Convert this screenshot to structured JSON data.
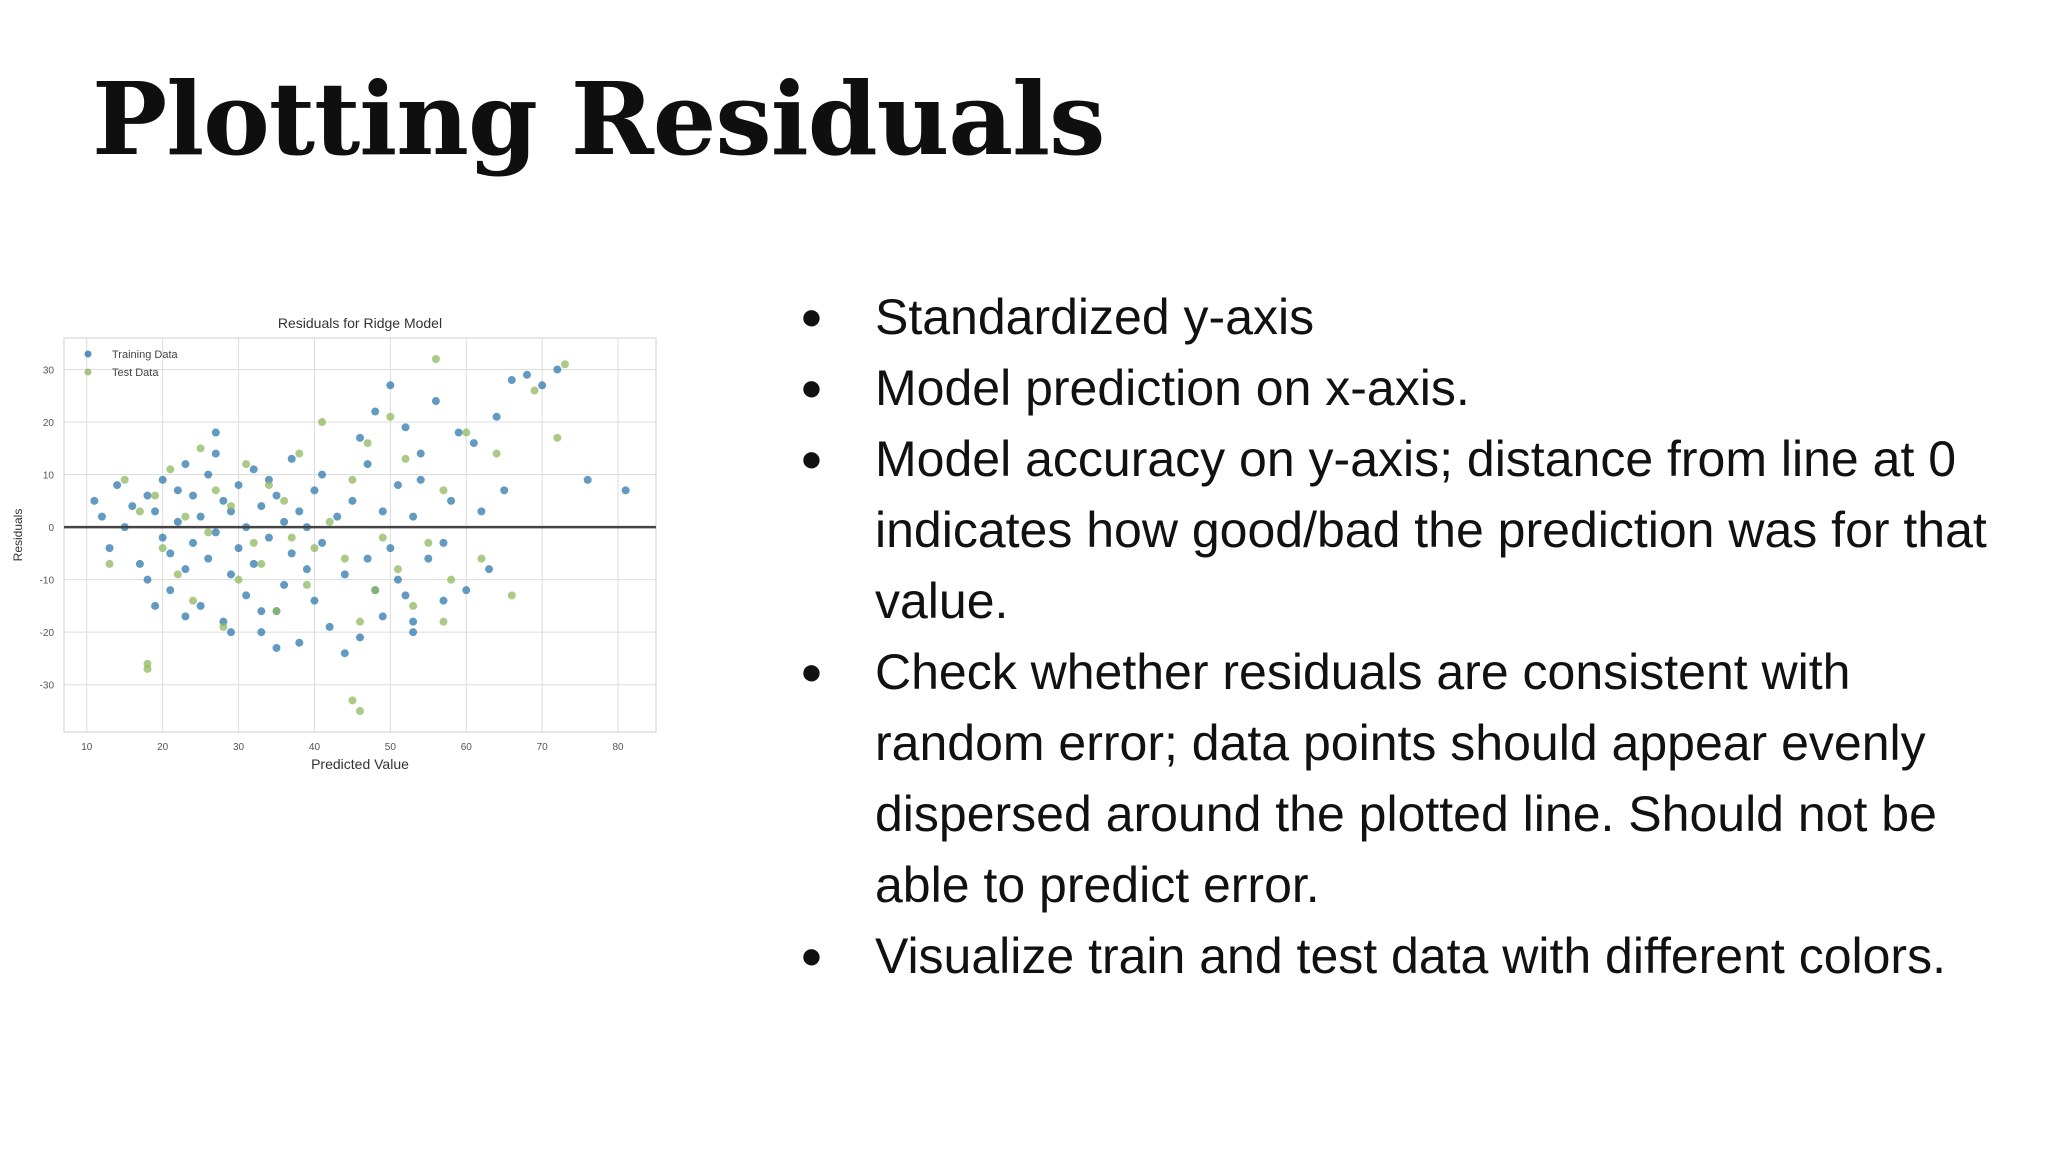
{
  "slide": {
    "title": "Plotting Residuals",
    "bullet_glyph": "●",
    "bullets": [
      "Standardized y-axis",
      "Model prediction on x-axis.",
      "Model accuracy on y-axis; distance from line at 0 indicates how good/bad the prediction was for that value.",
      "Check whether residuals are consistent with random error; data points should appear evenly dispersed around the plotted line. Should not be able to predict error.",
      "Visualize train and test data with different colors."
    ]
  },
  "colors": {
    "training": "#2f78ad",
    "test": "#8fb860",
    "zero_line": "#444444",
    "grid": "#dcdcdc"
  },
  "chart_data": {
    "type": "scatter",
    "title": "Residuals for Ridge Model",
    "xlabel": "Predicted Value",
    "ylabel": "Residuals",
    "xlim": [
      7,
      85
    ],
    "ylim": [
      -39,
      36
    ],
    "xticks": [
      10,
      20,
      30,
      40,
      50,
      60,
      70,
      80
    ],
    "yticks": [
      -30,
      -20,
      -10,
      0,
      10,
      20,
      30
    ],
    "grid": true,
    "legend_position": "top-left",
    "hline": 0,
    "series": [
      {
        "name": "Training Data",
        "color": "#2f78ad",
        "x": [
          11,
          12,
          13,
          14,
          15,
          16,
          17,
          18,
          18,
          19,
          20,
          20,
          21,
          21,
          22,
          22,
          23,
          23,
          24,
          24,
          25,
          25,
          26,
          26,
          27,
          27,
          28,
          28,
          29,
          29,
          30,
          30,
          31,
          31,
          32,
          32,
          33,
          33,
          34,
          34,
          35,
          35,
          36,
          36,
          37,
          37,
          38,
          38,
          39,
          39,
          40,
          40,
          41,
          41,
          42,
          43,
          44,
          45,
          46,
          46,
          47,
          47,
          48,
          48,
          49,
          49,
          50,
          50,
          51,
          51,
          52,
          52,
          53,
          53,
          54,
          54,
          55,
          56,
          57,
          58,
          59,
          60,
          61,
          62,
          63,
          64,
          65,
          66,
          68,
          70,
          72,
          76,
          81,
          19,
          23,
          27,
          29,
          33,
          35,
          44,
          53,
          57
        ],
        "y": [
          5,
          2,
          -4,
          8,
          0,
          4,
          -7,
          6,
          -10,
          3,
          9,
          -2,
          -12,
          -5,
          7,
          1,
          -8,
          12,
          -3,
          6,
          -15,
          2,
          10,
          -6,
          -1,
          14,
          -18,
          5,
          -9,
          3,
          -4,
          8,
          -13,
          0,
          11,
          -7,
          -20,
          4,
          -2,
          9,
          -16,
          6,
          -11,
          1,
          -5,
          13,
          -22,
          3,
          -8,
          0,
          -14,
          7,
          -3,
          10,
          -19,
          2,
          -9,
          5,
          -21,
          17,
          -6,
          12,
          -12,
          22,
          3,
          -17,
          27,
          -4,
          8,
          -10,
          19,
          -13,
          2,
          -20,
          9,
          14,
          -6,
          24,
          -3,
          5,
          18,
          -12,
          16,
          3,
          -8,
          21,
          7,
          28,
          29,
          27,
          30,
          9,
          7,
          -15,
          -17,
          18,
          -20,
          -16,
          -23,
          -24,
          -18,
          -14
        ]
      },
      {
        "name": "Test Data",
        "color": "#8fb860",
        "x": [
          13,
          15,
          17,
          18,
          19,
          20,
          21,
          22,
          23,
          24,
          25,
          26,
          27,
          28,
          29,
          30,
          31,
          32,
          33,
          34,
          35,
          36,
          37,
          38,
          39,
          40,
          41,
          42,
          44,
          45,
          46,
          47,
          48,
          49,
          50,
          51,
          52,
          53,
          55,
          56,
          57,
          58,
          60,
          62,
          64,
          66,
          69,
          72,
          73,
          18,
          45,
          46,
          57
        ],
        "y": [
          -7,
          9,
          3,
          -26,
          6,
          -4,
          11,
          -9,
          2,
          -14,
          15,
          -1,
          7,
          -19,
          4,
          -10,
          12,
          -3,
          -7,
          8,
          -16,
          5,
          -2,
          14,
          -11,
          -4,
          20,
          1,
          -6,
          9,
          -18,
          16,
          -12,
          -2,
          21,
          -8,
          13,
          -15,
          -3,
          32,
          7,
          -10,
          18,
          -6,
          14,
          -13,
          26,
          17,
          31,
          -27,
          -33,
          -35,
          -18
        ]
      }
    ]
  }
}
